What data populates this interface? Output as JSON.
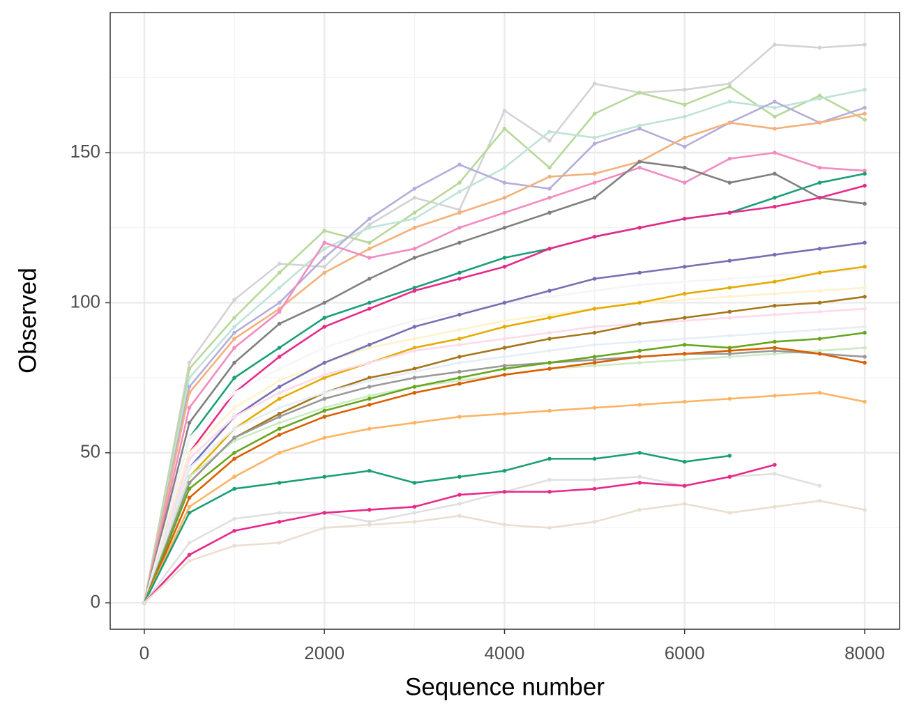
{
  "chart_data": {
    "type": "line",
    "x_label": "Sequence number",
    "y_label": "Observed",
    "xlim": [
      -379,
      8387
    ],
    "ylim": [
      -8.8,
      196.7
    ],
    "xticks": [
      0,
      2000,
      4000,
      6000,
      8000
    ],
    "yticks": [
      0,
      50,
      100,
      150
    ],
    "minor_xticks": [
      1000,
      3000,
      5000,
      7000
    ],
    "minor_yticks": [
      25,
      75,
      125,
      175
    ],
    "grid": true,
    "x": [
      0,
      500,
      1000,
      1500,
      2000,
      2500,
      3000,
      3500,
      4000,
      4500,
      5000,
      5500,
      6000,
      6500,
      7000,
      7500,
      8000
    ],
    "series": [
      {
        "color": "#d3d3d3",
        "values": [
          0,
          80,
          101,
          113,
          112,
          126,
          135,
          131,
          164,
          154,
          173,
          170,
          171,
          173,
          186,
          185,
          186
        ]
      },
      {
        "color": "#b8d89a",
        "values": [
          0,
          78,
          95,
          110,
          124,
          120,
          130,
          140,
          158,
          145,
          163,
          170,
          166,
          172,
          162,
          169,
          161
        ]
      },
      {
        "color": "#bfe3d6",
        "values": [
          0,
          75,
          92,
          105,
          118,
          125,
          128,
          137,
          145,
          157,
          155,
          159,
          162,
          167,
          165,
          168,
          171
        ]
      },
      {
        "color": "#b3aedb",
        "values": [
          0,
          72,
          90,
          100,
          115,
          128,
          138,
          146,
          140,
          138,
          153,
          158,
          152,
          160,
          167,
          160,
          165
        ]
      },
      {
        "color": "#f4b07a",
        "values": [
          0,
          70,
          88,
          98,
          110,
          118,
          125,
          130,
          135,
          142,
          143,
          147,
          155,
          160,
          158,
          160,
          163
        ]
      },
      {
        "color": "#f08cc0",
        "values": [
          0,
          65,
          85,
          97,
          120,
          115,
          118,
          125,
          130,
          135,
          140,
          145,
          140,
          148,
          150,
          145,
          144
        ]
      },
      {
        "color": "#808080",
        "values": [
          0,
          60,
          80,
          93,
          100,
          108,
          115,
          120,
          125,
          130,
          135,
          147,
          145,
          140,
          143,
          135,
          133
        ]
      },
      {
        "color": "#1b9e77",
        "values": [
          0,
          55,
          75,
          85,
          95,
          100,
          105,
          110,
          115,
          118,
          122,
          125,
          128,
          130,
          135,
          140,
          143
        ]
      },
      {
        "color": "#e7298a",
        "values": [
          0,
          50,
          70,
          82,
          92,
          98,
          104,
          108,
          112,
          118,
          122,
          125,
          128,
          130,
          132,
          135,
          139
        ]
      },
      {
        "color": "#f5f5f5",
        "values": [
          0,
          55,
          70,
          78,
          85,
          90,
          94,
          97,
          100,
          102,
          104,
          106,
          107,
          108,
          109,
          110,
          111
        ]
      },
      {
        "color": "#fff2cc",
        "values": [
          0,
          50,
          65,
          74,
          80,
          85,
          88,
          91,
          94,
          96,
          98,
          100,
          101,
          102,
          103,
          104,
          105
        ]
      },
      {
        "color": "#7570b3",
        "values": [
          0,
          45,
          62,
          72,
          80,
          86,
          92,
          96,
          100,
          104,
          108,
          110,
          112,
          114,
          116,
          118,
          120
        ]
      },
      {
        "color": "#e6ab02",
        "values": [
          0,
          42,
          58,
          68,
          75,
          80,
          85,
          88,
          92,
          95,
          98,
          100,
          103,
          105,
          107,
          110,
          112
        ]
      },
      {
        "color": "#fddaec",
        "values": [
          0,
          48,
          62,
          70,
          76,
          80,
          84,
          86,
          88,
          90,
          92,
          93,
          94,
          95,
          96,
          97,
          98
        ]
      },
      {
        "color": "#a6761d",
        "values": [
          0,
          40,
          55,
          63,
          70,
          75,
          78,
          82,
          85,
          88,
          90,
          93,
          95,
          97,
          99,
          100,
          102
        ]
      },
      {
        "color": "#e5eef6",
        "values": [
          0,
          45,
          58,
          65,
          70,
          74,
          77,
          80,
          82,
          84,
          86,
          87,
          88,
          89,
          90,
          91,
          92
        ]
      },
      {
        "color": "#ccebc5",
        "values": [
          0,
          42,
          54,
          60,
          65,
          69,
          72,
          74,
          76,
          78,
          79,
          80,
          81,
          82,
          83,
          84,
          85
        ]
      },
      {
        "color": "#999999",
        "values": [
          0,
          40,
          55,
          62,
          68,
          72,
          75,
          77,
          79,
          80,
          81,
          82,
          83,
          83,
          84,
          83,
          82
        ]
      },
      {
        "color": "#66a61e",
        "values": [
          0,
          38,
          50,
          58,
          64,
          68,
          72,
          75,
          78,
          80,
          82,
          84,
          86,
          85,
          87,
          88,
          90
        ]
      },
      {
        "color": "#d95f02",
        "values": [
          0,
          35,
          48,
          56,
          62,
          66,
          70,
          73,
          76,
          78,
          80,
          82,
          83,
          84,
          85,
          83,
          80
        ]
      },
      {
        "color": "#fdb462",
        "values": [
          0,
          32,
          42,
          50,
          55,
          58,
          60,
          62,
          63,
          64,
          65,
          66,
          67,
          68,
          69,
          70,
          67
        ]
      },
      {
        "color": "#1b9e77",
        "values": [
          0,
          30,
          38,
          40,
          42,
          44,
          40,
          42,
          44,
          48,
          48,
          50,
          47,
          49,
          null,
          null,
          null
        ]
      },
      {
        "color": "#e0e0e0",
        "values": [
          0,
          20,
          28,
          30,
          30,
          27,
          30,
          33,
          37,
          41,
          41,
          42,
          39,
          42,
          43,
          39,
          null
        ]
      },
      {
        "color": "#e7298a",
        "values": [
          0,
          16,
          24,
          27,
          30,
          31,
          32,
          36,
          37,
          37,
          38,
          40,
          39,
          42,
          46,
          null,
          null
        ]
      },
      {
        "color": "#eadfcf",
        "values": [
          0,
          14,
          19,
          20,
          25,
          26,
          27,
          29,
          26,
          25,
          27,
          31,
          33,
          30,
          32,
          34,
          31
        ]
      }
    ]
  }
}
